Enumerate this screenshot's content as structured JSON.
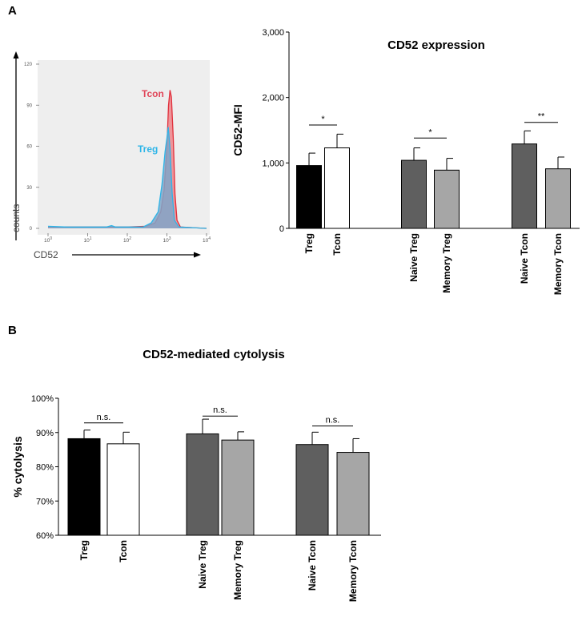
{
  "panels": {
    "a_label": "A",
    "b_label": "B"
  },
  "colors": {
    "black": "#000000",
    "white": "#ffffff",
    "dark_grey": "#5f5f5f",
    "light_grey": "#a6a6a6",
    "tcon_fill": "#ee8a8f",
    "tcon_line": "#e0303c",
    "treg_fill": "#7fa6c9",
    "treg_line": "#2eb5e8",
    "histo_bg": "#eeeeee"
  },
  "chart_data": [
    {
      "id": "histogram",
      "type": "area",
      "xlabel": "CD52",
      "ylabel": "counts",
      "x_scale": "log10",
      "xlim": [
        1,
        10000
      ],
      "ylim": [
        0,
        120
      ],
      "x_tick_labels": [
        "10",
        "10",
        "10",
        "10",
        "10"
      ],
      "x_tick_exponents": [
        "0",
        "1",
        "2",
        "3",
        "4"
      ],
      "y_ticks": [
        0,
        30,
        60,
        90,
        120
      ],
      "y_tick_labels": [
        "0",
        "30",
        "60",
        "90",
        "120"
      ],
      "series": [
        {
          "name": "Tcon",
          "label": "Tcon",
          "points": [
            [
              1,
              1
            ],
            [
              10,
              1
            ],
            [
              100,
              1
            ],
            [
              300,
              1.5
            ],
            [
              500,
              4
            ],
            [
              700,
              12
            ],
            [
              850,
              28
            ],
            [
              1000,
              60
            ],
            [
              1100,
              90
            ],
            [
              1200,
              101
            ],
            [
              1300,
              96
            ],
            [
              1450,
              65
            ],
            [
              1600,
              25
            ],
            [
              1800,
              6
            ],
            [
              2200,
              1
            ],
            [
              10000,
              0
            ]
          ]
        },
        {
          "name": "Treg",
          "label": "Treg",
          "points": [
            [
              1,
              1.5
            ],
            [
              3,
              1
            ],
            [
              10,
              1
            ],
            [
              30,
              1
            ],
            [
              40,
              2
            ],
            [
              50,
              1
            ],
            [
              100,
              1
            ],
            [
              250,
              1
            ],
            [
              400,
              4
            ],
            [
              600,
              12
            ],
            [
              750,
              32
            ],
            [
              900,
              56
            ],
            [
              1000,
              66
            ],
            [
              1080,
              74
            ],
            [
              1200,
              58
            ],
            [
              1350,
              26
            ],
            [
              1550,
              6
            ],
            [
              2000,
              1
            ],
            [
              10000,
              0
            ]
          ]
        }
      ]
    },
    {
      "id": "cd52-expression",
      "type": "bar",
      "title": "CD52 expression",
      "ylabel": "CD52-MFI",
      "xlabel": "",
      "ylim": [
        0,
        3000
      ],
      "y_ticks": [
        0,
        1000,
        2000,
        3000
      ],
      "y_tick_labels": [
        "0",
        "1,000",
        "2,000",
        "3,000"
      ],
      "categories": [
        "Treg",
        "Tcon",
        "Naive Treg",
        "Memory Treg",
        "Naive Tcon",
        "Memory Tcon"
      ],
      "groups": [
        [
          0,
          1
        ],
        [
          2,
          3
        ],
        [
          4,
          5
        ]
      ],
      "fill_keys": [
        "black",
        "white",
        "dark_grey",
        "light_grey",
        "dark_grey",
        "light_grey"
      ],
      "values": [
        960,
        1230,
        1040,
        890,
        1290,
        910
      ],
      "errors": [
        190,
        210,
        190,
        180,
        200,
        180
      ],
      "significance": [
        {
          "group": 0,
          "text": "*",
          "y": 1580
        },
        {
          "group": 1,
          "text": "*",
          "y": 1380
        },
        {
          "group": 2,
          "text": "**",
          "y": 1620
        }
      ]
    },
    {
      "id": "cd52-cytolysis",
      "type": "bar",
      "title": "CD52-mediated cytolysis",
      "ylabel": "% cytolysis",
      "xlabel": "",
      "ylim": [
        60,
        100
      ],
      "y_ticks": [
        60,
        70,
        80,
        90,
        100
      ],
      "y_tick_labels": [
        "60%",
        "70%",
        "80%",
        "90%",
        "100%"
      ],
      "categories": [
        "Treg",
        "Tcon",
        "Naive Treg",
        "Memory Treg",
        "Naive Tcon",
        "Memory Tcon"
      ],
      "groups": [
        [
          0,
          1
        ],
        [
          2,
          3
        ],
        [
          4,
          5
        ]
      ],
      "fill_keys": [
        "black",
        "white",
        "dark_grey",
        "light_grey",
        "dark_grey",
        "light_grey"
      ],
      "values": [
        88.2,
        86.7,
        89.6,
        87.8,
        86.5,
        84.2
      ],
      "errors": [
        2.5,
        3.4,
        4.3,
        2.4,
        3.6,
        4.0
      ],
      "significance": [
        {
          "group": 0,
          "text": "n.s.",
          "y": 92.8
        },
        {
          "group": 1,
          "text": "n.s.",
          "y": 94.8
        },
        {
          "group": 2,
          "text": "n.s.",
          "y": 91.9
        }
      ]
    }
  ]
}
